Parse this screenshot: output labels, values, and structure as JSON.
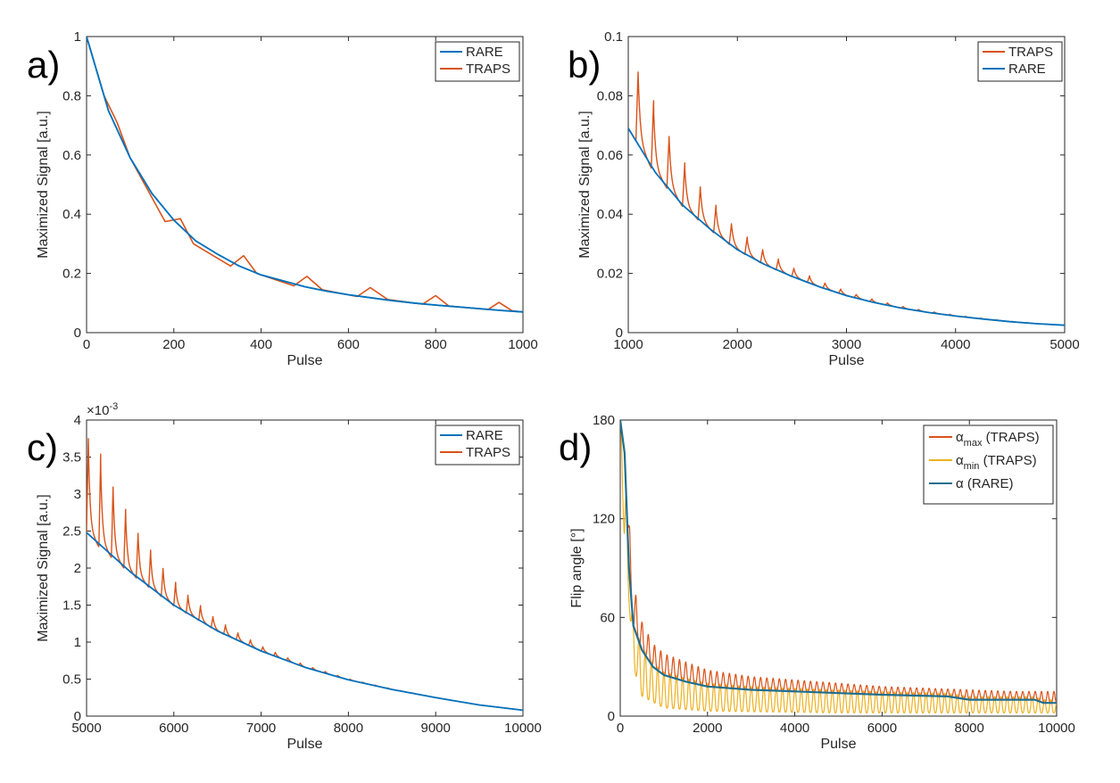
{
  "colors": {
    "blue": "#0072BD",
    "dark_blue": "#1F6F8F",
    "orange": "#D95319",
    "yellow": "#EDB120",
    "axis": "#262626"
  },
  "chart_data": [
    {
      "id": "a",
      "type": "line",
      "panel_label": "a)",
      "xlabel": "Pulse",
      "ylabel": "Maximized Signal [a.u.]",
      "xlim": [
        0,
        1000
      ],
      "ylim": [
        0,
        1
      ],
      "xticks": [
        0,
        200,
        400,
        600,
        800,
        1000
      ],
      "yticks": [
        0,
        0.2,
        0.4,
        0.6,
        0.8,
        1
      ],
      "ytick_labels": [
        "0",
        "0.2",
        "0.4",
        "0.6",
        "0.8",
        "1"
      ],
      "legend": [
        "RARE",
        "TRAPS"
      ],
      "series": [
        {
          "name": "RARE",
          "color": "#0072BD",
          "x": [
            0,
            50,
            100,
            150,
            200,
            250,
            300,
            350,
            400,
            450,
            500,
            550,
            600,
            650,
            700,
            750,
            800,
            850,
            900,
            950,
            1000
          ],
          "y": [
            1.0,
            0.75,
            0.59,
            0.47,
            0.38,
            0.31,
            0.265,
            0.225,
            0.195,
            0.175,
            0.155,
            0.14,
            0.128,
            0.118,
            0.108,
            0.1,
            0.093,
            0.087,
            0.081,
            0.075,
            0.07
          ]
        },
        {
          "name": "TRAPS",
          "color": "#D95319",
          "x": [
            0,
            40,
            70,
            100,
            180,
            215,
            245,
            330,
            360,
            390,
            475,
            505,
            540,
            620,
            650,
            690,
            770,
            800,
            830,
            920,
            945,
            975,
            1000
          ],
          "y": [
            1.0,
            0.8,
            0.71,
            0.59,
            0.375,
            0.385,
            0.3,
            0.225,
            0.26,
            0.2,
            0.158,
            0.19,
            0.145,
            0.122,
            0.152,
            0.112,
            0.096,
            0.125,
            0.09,
            0.078,
            0.102,
            0.074,
            0.07
          ]
        }
      ]
    },
    {
      "id": "b",
      "type": "line",
      "panel_label": "b)",
      "xlabel": "Pulse",
      "ylabel": "Maximized Signal [a.u.]",
      "xlim": [
        1000,
        5000
      ],
      "ylim": [
        0,
        0.1
      ],
      "xticks": [
        1000,
        2000,
        3000,
        4000,
        5000
      ],
      "yticks": [
        0,
        0.02,
        0.04,
        0.06,
        0.08,
        0.1
      ],
      "ytick_labels": [
        "0",
        "0.02",
        "0.04",
        "0.06",
        "0.08",
        "0.1"
      ],
      "legend": [
        "TRAPS",
        "RARE"
      ],
      "traps_peaks": {
        "start": 1090,
        "period": 143,
        "first_peak": 0.088,
        "decay": 0.8
      },
      "series": [
        {
          "name": "RARE",
          "color": "#0072BD",
          "x": [
            1000,
            1250,
            1500,
            1750,
            2000,
            2250,
            2500,
            2750,
            3000,
            3250,
            3500,
            3750,
            4000,
            4250,
            4500,
            4750,
            5000
          ],
          "y": [
            0.069,
            0.054,
            0.043,
            0.035,
            0.028,
            0.023,
            0.019,
            0.0155,
            0.0125,
            0.0102,
            0.0083,
            0.0068,
            0.0056,
            0.0046,
            0.0037,
            0.003,
            0.0025
          ]
        }
      ]
    },
    {
      "id": "c",
      "type": "line",
      "panel_label": "c)",
      "xlabel": "Pulse",
      "ylabel": "Maximized Signal [a.u.]",
      "exponent_label": "×10",
      "exponent": "-3",
      "xlim": [
        5000,
        10000
      ],
      "ylim": [
        0,
        4
      ],
      "xticks": [
        5000,
        6000,
        7000,
        8000,
        9000,
        10000
      ],
      "yticks": [
        0,
        0.5,
        1,
        1.5,
        2,
        2.5,
        3,
        3.5,
        4
      ],
      "ytick_labels": [
        "0",
        "0.5",
        "1",
        "1.5",
        "2",
        "2.5",
        "3",
        "3.5",
        "4"
      ],
      "legend": [
        "RARE",
        "TRAPS"
      ],
      "traps_peaks": {
        "start": 5020,
        "period": 143,
        "first_peak": 3.75,
        "decay": 0.8
      },
      "series": [
        {
          "name": "RARE",
          "color": "#0072BD",
          "x": [
            5000,
            5500,
            6000,
            6500,
            7000,
            7500,
            8000,
            8500,
            9000,
            9500,
            10000
          ],
          "y": [
            2.48,
            1.95,
            1.5,
            1.15,
            0.88,
            0.66,
            0.49,
            0.36,
            0.25,
            0.15,
            0.08
          ]
        }
      ]
    },
    {
      "id": "d",
      "type": "line",
      "panel_label": "d)",
      "xlabel": "Pulse",
      "ylabel": "Flip angle [°]",
      "xlim": [
        0,
        10000
      ],
      "ylim": [
        0,
        180
      ],
      "xticks": [
        0,
        2000,
        4000,
        6000,
        8000,
        10000
      ],
      "yticks": [
        0,
        60,
        120,
        180
      ],
      "ytick_labels": [
        "0",
        "60",
        "120",
        "180"
      ],
      "legend": [
        {
          "symbol": "α",
          "sub": "max",
          "suffix": " (TRAPS)",
          "color": "#D95319"
        },
        {
          "symbol": "α",
          "sub": "min",
          "suffix": " (TRAPS)",
          "color": "#EDB120"
        },
        {
          "symbol": "α",
          "sub": "",
          "suffix": " (RARE)",
          "color": "#1F6F8F"
        }
      ],
      "series": [
        {
          "name": "α (RARE)",
          "color": "#1F6F8F",
          "x": [
            0,
            100,
            200,
            300,
            500,
            750,
            1000,
            1500,
            2000,
            3000,
            4000,
            5000,
            6000,
            7500,
            8000,
            9500,
            9700,
            10000
          ],
          "y": [
            180,
            160,
            90,
            55,
            40,
            30,
            25,
            21,
            18,
            16,
            15,
            14,
            13,
            12,
            10,
            10,
            8,
            8
          ]
        },
        {
          "name": "α_max envelope",
          "color": "#D95319",
          "x": [
            150,
            200,
            300,
            500,
            750,
            1000,
            2000,
            3000,
            4000,
            5000,
            6000,
            7000,
            8000,
            9000,
            10000
          ],
          "y": [
            180,
            120,
            80,
            57,
            44,
            38,
            28,
            24,
            22,
            20,
            18,
            17,
            16,
            15,
            15
          ]
        },
        {
          "name": "α_min envelope",
          "color": "#EDB120",
          "x": [
            0,
            50,
            100,
            200,
            300,
            500,
            1000,
            2000,
            5000,
            10000
          ],
          "y": [
            180,
            140,
            100,
            70,
            30,
            12,
            5,
            3,
            2,
            2
          ]
        }
      ]
    }
  ]
}
